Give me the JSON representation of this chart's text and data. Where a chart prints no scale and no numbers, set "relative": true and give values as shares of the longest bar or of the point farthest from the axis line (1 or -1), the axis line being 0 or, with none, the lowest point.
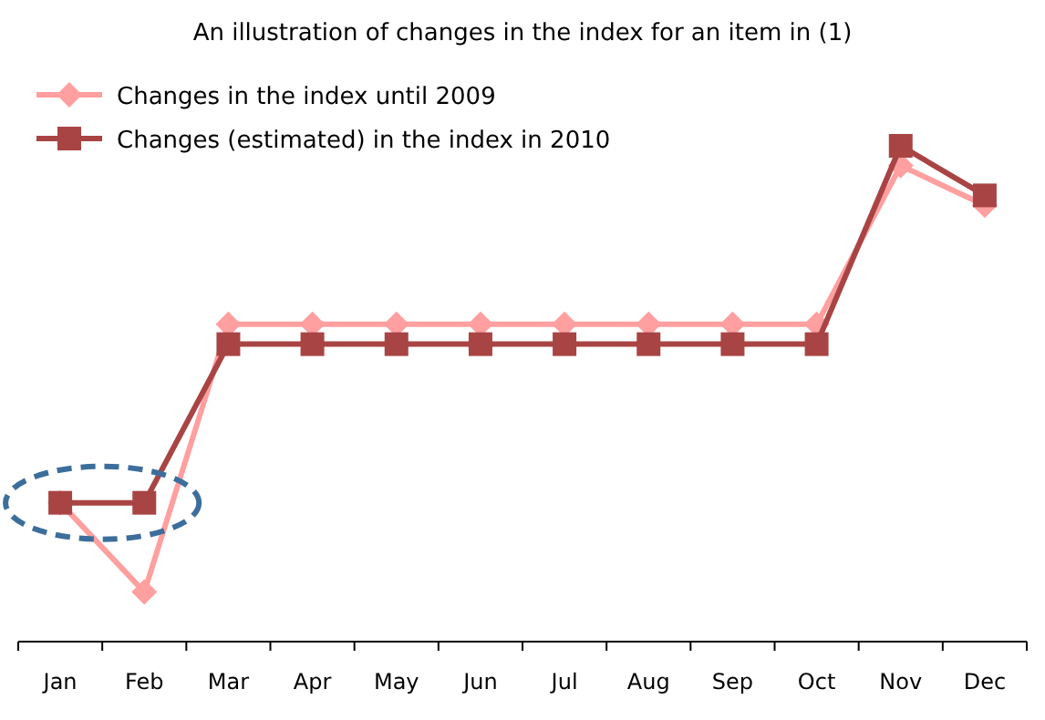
{
  "chart_data": {
    "type": "line",
    "title": "An illustration of changes in the index for an item in (1)",
    "categories": [
      "Jan",
      "Feb",
      "Mar",
      "Apr",
      "May",
      "Jun",
      "Jul",
      "Aug",
      "Sep",
      "Oct",
      "Nov",
      "Dec"
    ],
    "relative": true,
    "series": [
      {
        "name": "Changes in the index until 2009",
        "color": "#ff9f9f",
        "marker": "diamond",
        "values": [
          0.28,
          0.1,
          0.64,
          0.64,
          0.64,
          0.64,
          0.64,
          0.64,
          0.64,
          0.64,
          0.96,
          0.88
        ]
      },
      {
        "name": "Changes (estimated) in the index in 2010",
        "color": "#a94444",
        "marker": "square",
        "values": [
          0.28,
          0.28,
          0.6,
          0.6,
          0.6,
          0.6,
          0.6,
          0.6,
          0.6,
          0.6,
          1,
          0.9
        ]
      }
    ],
    "legend": "top left",
    "grid": false,
    "line_style": "solid"
  }
}
